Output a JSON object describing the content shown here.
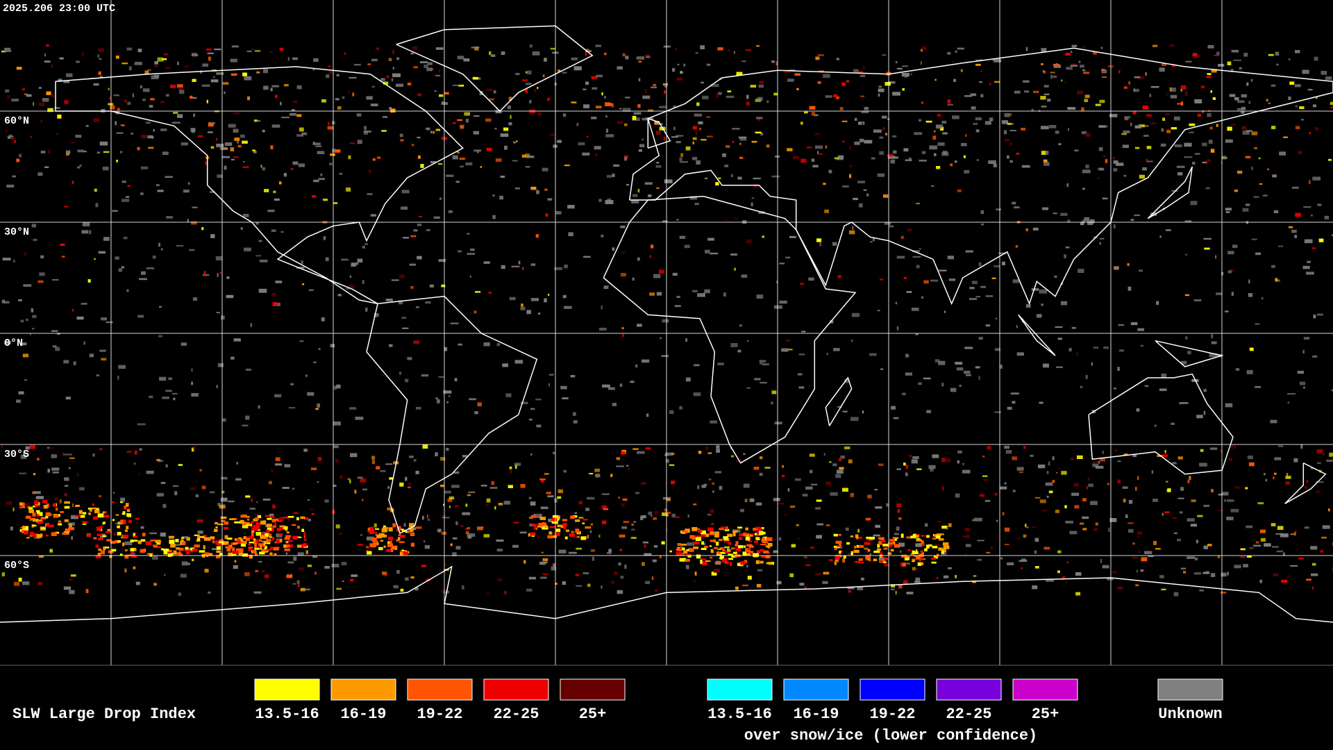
{
  "timestamp": "2025.206 23:00 UTC",
  "latitude_labels": [
    "60°N",
    "30°N",
    "0°N",
    "30°S",
    "60°S"
  ],
  "legend": {
    "title": "SLW Large Drop Index",
    "items": [
      {
        "label": "13.5-16",
        "color": "#ffff00"
      },
      {
        "label": "16-19",
        "color": "#ff9900"
      },
      {
        "label": "19-22",
        "color": "#ff5500"
      },
      {
        "label": "22-25",
        "color": "#ee0000"
      },
      {
        "label": "25+",
        "color": "#660000"
      }
    ],
    "snow_ice_items": [
      {
        "label": "13.5-16",
        "color": "#00ffff"
      },
      {
        "label": "16-19",
        "color": "#0088ff"
      },
      {
        "label": "19-22",
        "color": "#0000ff"
      },
      {
        "label": "22-25",
        "color": "#7700dd"
      },
      {
        "label": "25+",
        "color": "#cc00cc"
      }
    ],
    "snow_ice_caption": "over snow/ice (lower confidence)",
    "unknown": {
      "label": "Unknown",
      "color": "#808080"
    }
  }
}
